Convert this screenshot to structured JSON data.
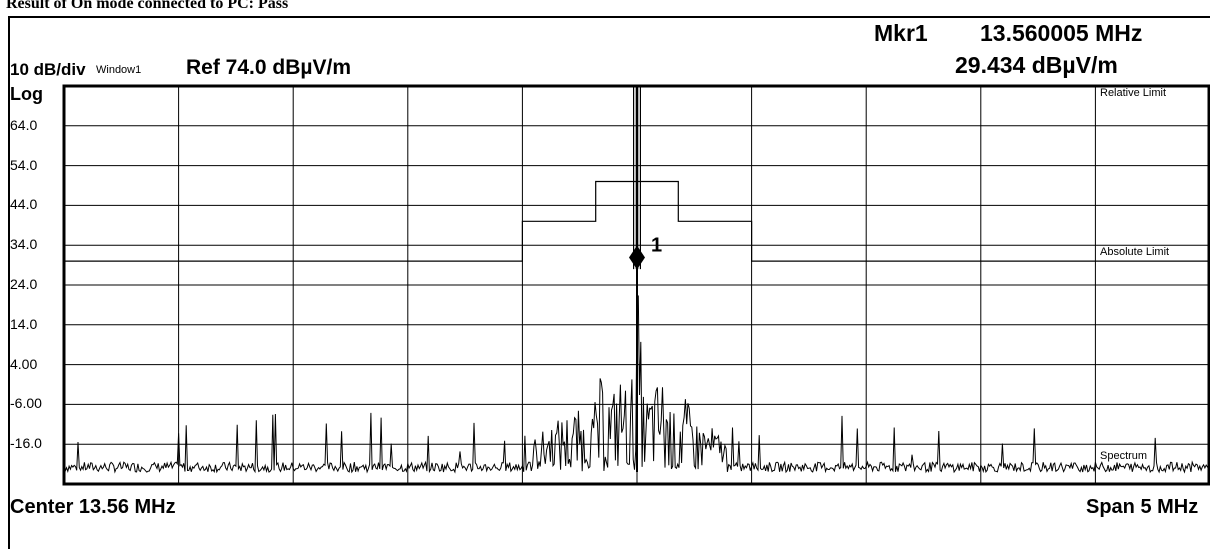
{
  "caption": "Result of On mode connected to PC: Pass",
  "marker": {
    "label": "Mkr1",
    "frequency": "13.560005 MHz",
    "amplitude": "29.434 dBµV/m",
    "number": "1"
  },
  "scale_label": "10 dB/div",
  "window_label": "Window1",
  "ref_label": "Ref 74.0 dBµV/m",
  "log_label": "Log",
  "center_label": "Center  13.56 MHz",
  "span_label": "Span 5 MHz",
  "trace_labels": {
    "relative_limit": "Relative Limit",
    "absolute_limit": "Absolute Limit",
    "spectrum": "Spectrum"
  },
  "y_ticks": [
    "64.0",
    "54.0",
    "44.0",
    "34.0",
    "24.0",
    "14.0",
    "4.00",
    "-6.00",
    "-16.0"
  ],
  "colors": {
    "trace": "#000000",
    "grid": "#000000",
    "background": "#ffffff"
  },
  "chart_data": {
    "type": "line",
    "xlabel": "",
    "ylabel": "",
    "xlim": [
      11.06,
      16.06
    ],
    "ylim": [
      -26,
      74
    ],
    "grid": true,
    "series": [
      {
        "name": "Spectrum",
        "x": [
          11.06,
          11.25,
          11.5,
          11.75,
          12.0,
          12.25,
          12.5,
          12.75,
          13.0,
          13.1,
          13.2,
          13.3,
          13.35,
          13.4,
          13.45,
          13.5,
          13.53,
          13.56,
          13.59,
          13.62,
          13.67,
          13.72,
          13.77,
          13.82,
          13.9,
          14.0,
          14.2,
          14.5,
          14.75,
          15.0,
          15.25,
          15.5,
          15.75,
          16.06
        ],
        "values": [
          -23,
          -22,
          -20,
          -21,
          -19,
          -22,
          -21,
          -18,
          -20,
          -15,
          -10,
          -7,
          -12,
          1,
          -3,
          3,
          -8,
          29.4,
          -5,
          -2,
          1,
          -8,
          -4,
          -10,
          -12,
          -18,
          -20,
          -21,
          -22,
          -21,
          -22,
          -22,
          -21,
          -20
        ]
      },
      {
        "name": "Absolute Limit",
        "x": [
          11.06,
          13.06,
          13.06,
          13.38,
          13.38,
          13.74,
          13.74,
          14.06,
          14.06,
          16.06
        ],
        "values": [
          30,
          30,
          40,
          40,
          50,
          50,
          40,
          40,
          30,
          30
        ]
      },
      {
        "name": "Relative Limit",
        "x": [
          13.545,
          13.545,
          13.575,
          13.575
        ],
        "values": [
          28,
          74,
          74,
          28
        ]
      }
    ]
  }
}
